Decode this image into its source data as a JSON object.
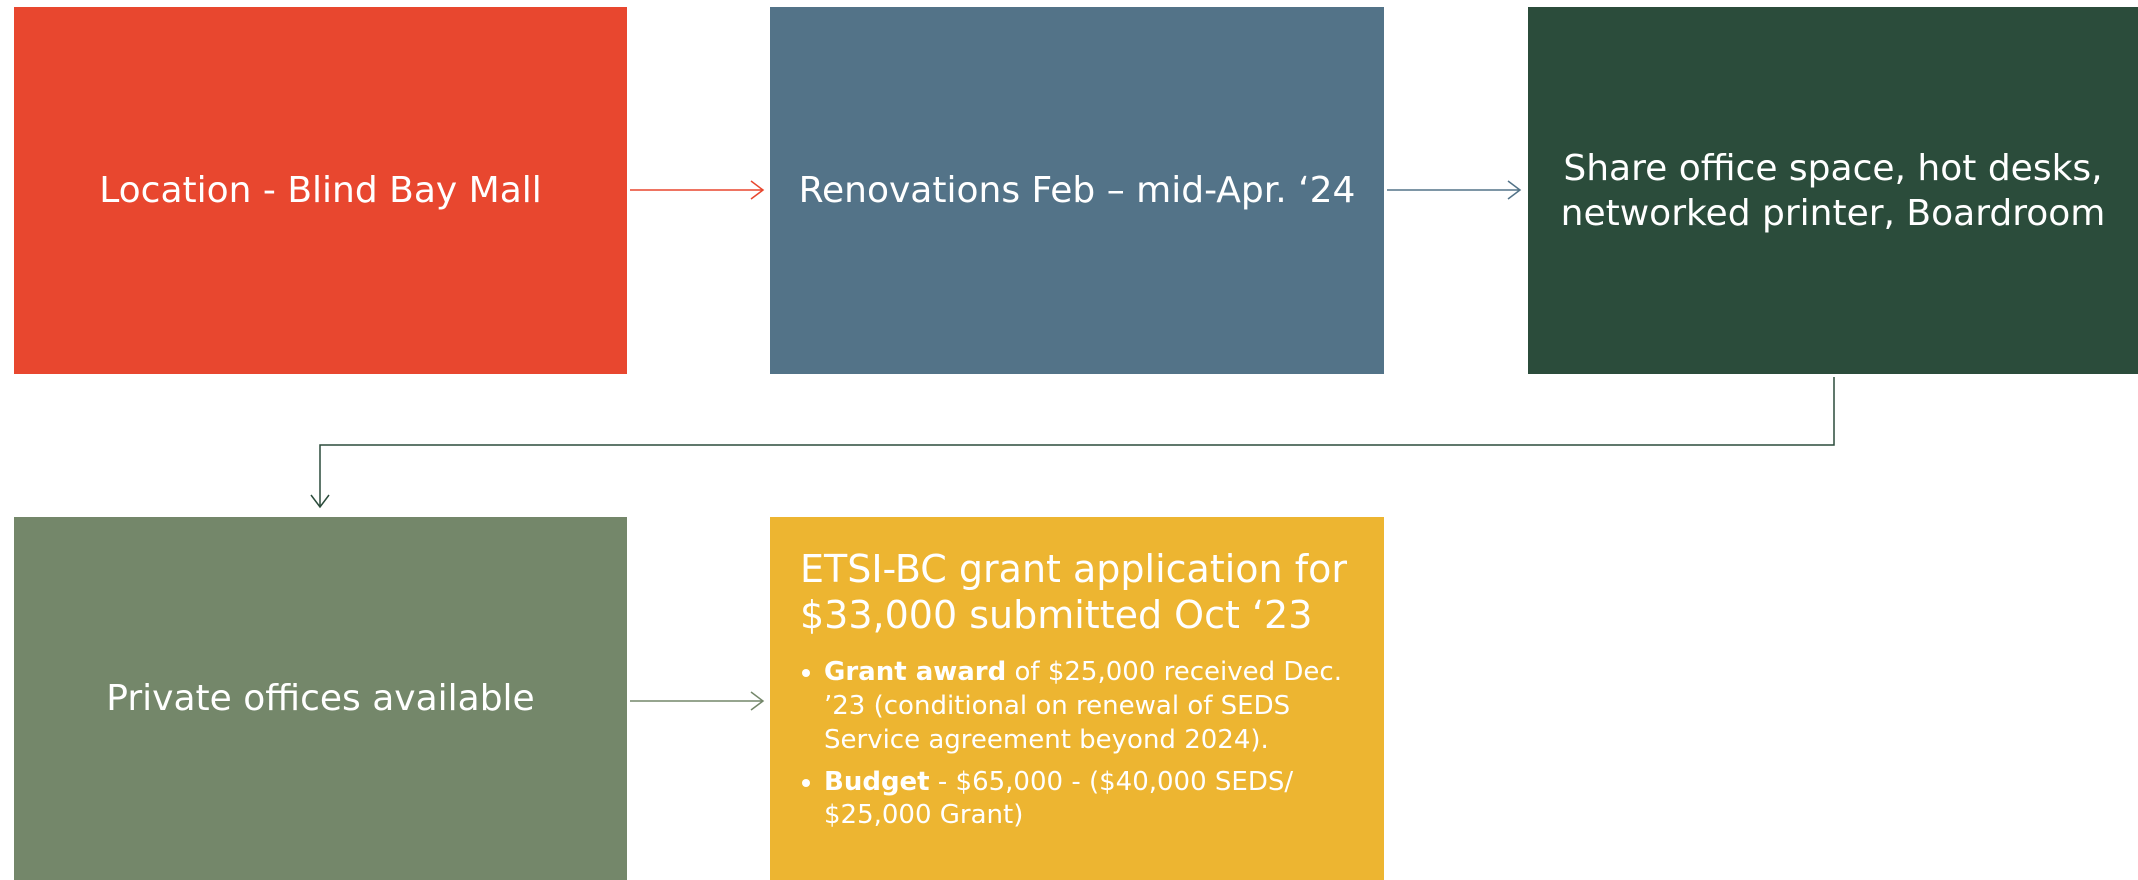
{
  "nodes": [
    {
      "label": "Location - Blind Bay Mall"
    },
    {
      "label": "Renovations Feb – mid-Apr. ‘24"
    },
    {
      "label": "Share office space, hot desks, networked printer, Boardroom"
    },
    {
      "label": "Private offices available"
    },
    {
      "label": "ETSI-BC grant application for $33,000 submitted Oct ‘23",
      "bullets": [
        {
          "bold": "Grant award",
          "text": " of $25,000 received Dec. ’23 (conditional on renewal of SEDS Service agreement beyond 2024)."
        },
        {
          "bold": "Budget",
          "text": " - $65,000 - ($40,000 SEDS/ $25,000 Grant)"
        }
      ]
    }
  ]
}
